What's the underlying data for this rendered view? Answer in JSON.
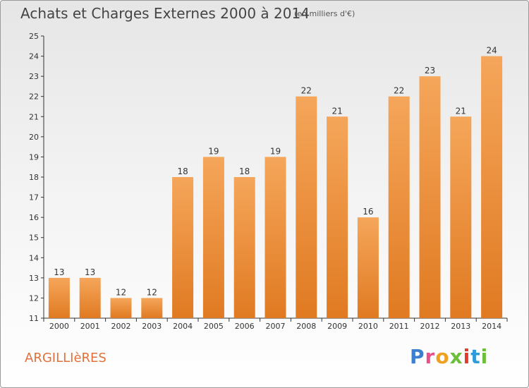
{
  "chart_data": {
    "type": "bar",
    "title": "Achats et Charges Externes 2000 à 2014",
    "subtitle": "(en milliers d'€)",
    "categories": [
      "2000",
      "2001",
      "2002",
      "2003",
      "2004",
      "2005",
      "2006",
      "2007",
      "2008",
      "2009",
      "2010",
      "2011",
      "2012",
      "2013",
      "2014"
    ],
    "values": [
      13,
      13,
      12,
      12,
      18,
      19,
      18,
      19,
      22,
      21,
      16,
      22,
      23,
      21,
      24
    ],
    "ylim": [
      11,
      25
    ],
    "yticks": [
      11,
      12,
      13,
      14,
      15,
      16,
      17,
      18,
      19,
      20,
      21,
      22,
      23,
      24,
      25
    ],
    "grid": false,
    "bar_color": "#f08a32",
    "bar_color_light": "#f5a65a",
    "bar_color_dark": "#e07a22"
  },
  "commune": "ARGILLIèRES",
  "logo": {
    "letters": [
      "P",
      "r",
      "o",
      "x",
      "i",
      "t",
      "i"
    ]
  }
}
